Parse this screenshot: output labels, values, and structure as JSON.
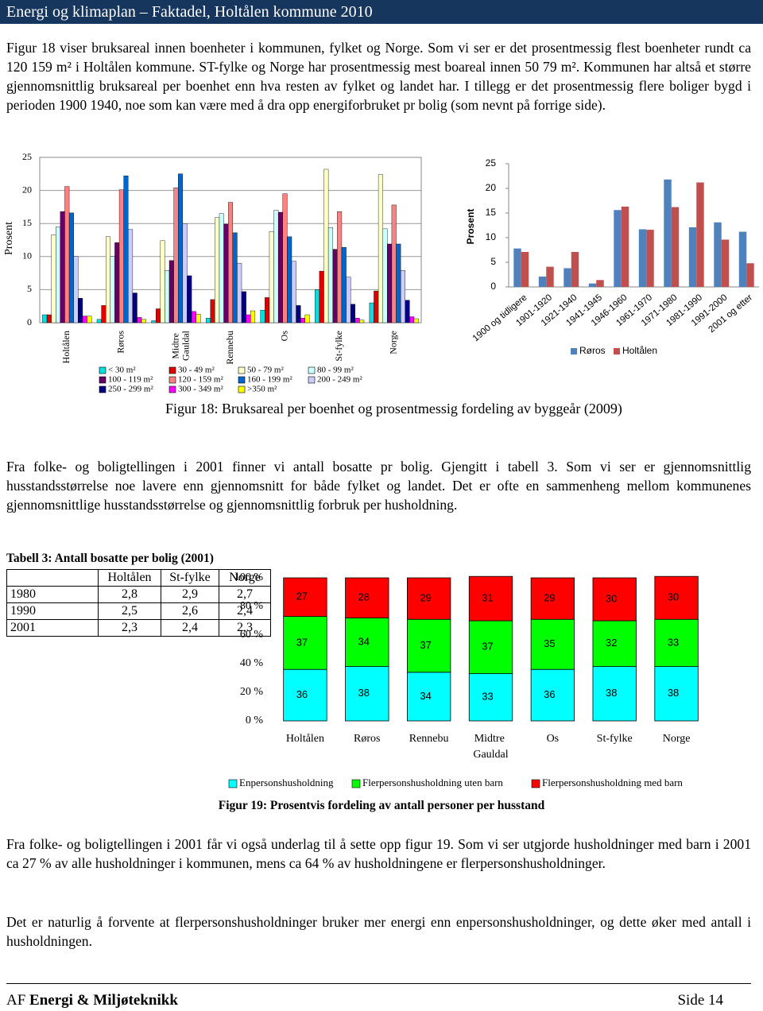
{
  "header": {
    "title": "Energi og klimaplan – Faktadel, Holtålen kommune 2010"
  },
  "paragraphs": [
    "Figur 18 viser bruksareal innen boenheter i kommunen, fylket og Norge. Som vi ser er det prosentmessig flest boenheter rundt ca 120  159 m² i Holtålen kommune. ST-fylke og Norge har prosentmessig mest boareal innen 50  79 m². Kommunen har altså et større gjennomsnittlig bruksareal per boenhet enn hva resten av fylket og landet har. I tillegg er det prosentmessig flere boliger bygd i perioden 1900  1940, noe som kan være med å dra opp energiforbruket pr bolig (som nevnt på forrige side).",
    "Fra folke- og boligtellingen i 2001 finner vi antall bosatte pr bolig. Gjengitt i tabell 3. Som vi ser er gjennomsnittlig husstandsstørrelse noe lavere enn gjennomsnitt for både fylket og landet. Det er ofte en sammenheng mellom kommunenes gjennomsnittlige husstandsstørrelse og gjennomsnittlig forbruk per husholdning.",
    "Fra folke- og boligtellingen i 2001 får vi også underlag til å sette opp figur 19. Som vi ser utgjorde husholdninger med barn i 2001 ca 27 % av alle husholdninger i kommunen, mens ca 64 % av husholdningene er flerpersonshusholdninger.",
    "Det er naturlig å forvente at flerpersonshusholdninger bruker mer energi enn enpersonshusholdninger, og dette øker med antall i husholdningen."
  ],
  "captions": [
    "Figur 18: Bruksareal per boenhet og prosentmessig fordeling av byggeår (2009)",
    "Figur 19: Prosentvis fordeling av antall personer per husstand"
  ],
  "table": {
    "title": "Tabell 3: Antall bosatte per bolig (2001)",
    "header": [
      "Holtålen",
      "St-fylke",
      "Norge"
    ],
    "rows": [
      [
        "1980",
        "2,8",
        "2,9",
        "2,7"
      ],
      [
        "1990",
        "2,5",
        "2,6",
        "2,4"
      ],
      [
        "2001",
        "2,3",
        "2,4",
        "2,3"
      ]
    ]
  },
  "chart_data": [
    {
      "type": "bar",
      "y_label": "Prosent",
      "grid": true,
      "legend": "bottom",
      "categories": [
        "Holtålen",
        "Røros",
        "Midtre Gauldal",
        "Rennebu",
        "Os",
        "St-fylke",
        "Norge"
      ],
      "ylim": [
        0,
        25
      ],
      "yticks": [
        0,
        5,
        10,
        15,
        20,
        25
      ],
      "series": [
        {
          "name": "< 30 m²",
          "color": "#00e0e0",
          "values": [
            1.2,
            0.5,
            0.3,
            0.7,
            1.9,
            5.0,
            3.0
          ]
        },
        {
          "name": "30 - 49 m²",
          "color": "#e00000",
          "values": [
            1.2,
            2.6,
            2.1,
            3.5,
            3.8,
            7.8,
            4.8
          ]
        },
        {
          "name": "50 - 79 m²",
          "color": "#ffffc8",
          "values": [
            13.3,
            13.0,
            12.4,
            15.9,
            13.8,
            23.2,
            22.4
          ]
        },
        {
          "name": "80 - 99 m²",
          "color": "#ccffff",
          "values": [
            14.5,
            10.0,
            7.9,
            16.5,
            17.0,
            14.4,
            14.2
          ]
        },
        {
          "name": "100 - 119 m²",
          "color": "#660066",
          "values": [
            16.8,
            12.1,
            9.4,
            14.9,
            16.7,
            11.1,
            11.9
          ]
        },
        {
          "name": "120 - 159 m²",
          "color": "#ff8080",
          "values": [
            20.6,
            20.1,
            20.4,
            18.2,
            19.5,
            16.8,
            17.8
          ]
        },
        {
          "name": "160 - 199 m²",
          "color": "#0066cc",
          "values": [
            16.6,
            22.2,
            22.5,
            13.6,
            13.0,
            11.4,
            11.9
          ]
        },
        {
          "name": "200 - 249 m²",
          "color": "#ccccff",
          "values": [
            10.0,
            14.1,
            15.0,
            9.0,
            9.3,
            6.9,
            7.9
          ]
        },
        {
          "name": "250 - 299 m²",
          "color": "#000080",
          "values": [
            3.7,
            4.5,
            7.1,
            4.7,
            2.6,
            2.8,
            3.4
          ]
        },
        {
          "name": "300 - 349 m²",
          "color": "#ff00ff",
          "values": [
            1.0,
            0.8,
            1.7,
            1.2,
            0.7,
            0.7,
            0.9
          ]
        },
        {
          "name": ">350 m²",
          "color": "#ffff00",
          "values": [
            1.0,
            0.5,
            1.3,
            1.8,
            1.2,
            0.4,
            0.6
          ]
        }
      ]
    },
    {
      "type": "bar",
      "y_label": "Prosent",
      "grid": false,
      "legend": "bottom",
      "categories": [
        "1900 og tidligere",
        "1901-1920",
        "1921-1940",
        "1941-1945",
        "1946-1960",
        "1961-1970",
        "1971-1980",
        "1981-1990",
        "1991-2000",
        "2001 og etter"
      ],
      "ylim": [
        0,
        25
      ],
      "yticks": [
        0,
        5,
        10,
        15,
        20,
        25
      ],
      "series": [
        {
          "name": "Røros",
          "color": "#4f81bd",
          "values": [
            7.8,
            2.1,
            3.8,
            0.7,
            15.6,
            11.7,
            21.8,
            12.1,
            13.1,
            11.2
          ]
        },
        {
          "name": "Holtålen",
          "color": "#c0504d",
          "values": [
            7.1,
            4.1,
            7.1,
            1.4,
            16.3,
            11.6,
            16.2,
            21.2,
            9.6,
            4.8
          ]
        }
      ]
    },
    {
      "type": "stacked_bar",
      "grid": false,
      "legend": "bottom",
      "categories": [
        "Holtålen",
        "Røros",
        "Rennebu",
        "Midtre Gauldal",
        "Os",
        "St-fylke",
        "Norge"
      ],
      "ylim": [
        0,
        100
      ],
      "yticks": [
        {
          "value": 0,
          "label": "0 %"
        },
        {
          "value": 20,
          "label": "20 %"
        },
        {
          "value": 40,
          "label": "40 %"
        },
        {
          "value": 60,
          "label": "60 %"
        },
        {
          "value": 80,
          "label": "80 %"
        },
        {
          "value": 100,
          "label": "100 %"
        }
      ],
      "series": [
        {
          "name": "Enpersonshusholdning",
          "color": "#00ffff",
          "values": [
            36,
            38,
            34,
            33,
            36,
            38,
            38
          ]
        },
        {
          "name": "Flerpersonshusholdning uten barn",
          "color": "#00ff00",
          "values": [
            37,
            34,
            37,
            37,
            35,
            32,
            33
          ]
        },
        {
          "name": "Flerpersonshusholdning med barn",
          "color": "#ff0000",
          "values": [
            27,
            28,
            29,
            31,
            29,
            30,
            30
          ]
        }
      ]
    }
  ],
  "footer": {
    "prefix": "AF",
    "company": "Energi & Miljøteknikk",
    "page": "Side 14"
  }
}
